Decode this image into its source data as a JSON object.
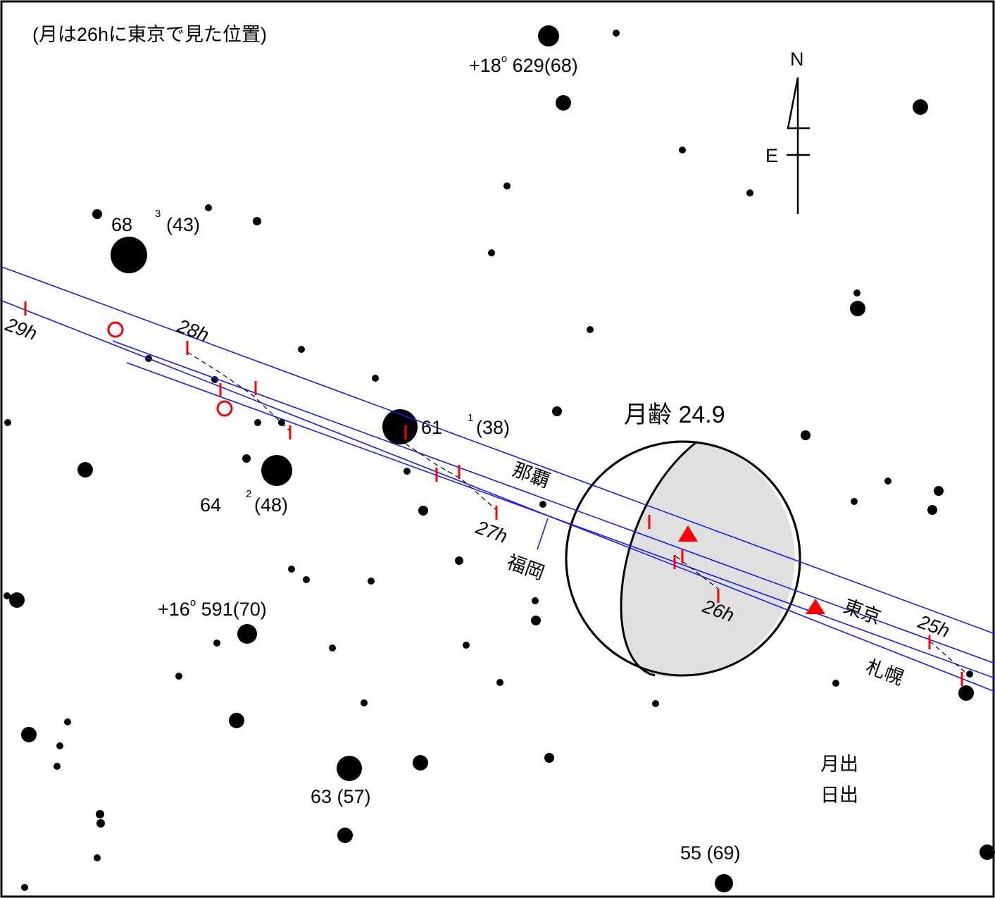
{
  "note": "(月は26hに東京で見た位置)",
  "moon_age_label": "月齢 24.9",
  "compass": {
    "north": "N",
    "east": "E"
  },
  "cities": {
    "naha": "那覇",
    "fukuoka": "福岡",
    "tokyo": "東京",
    "sapporo": "札幌"
  },
  "hours": {
    "h25": "25h",
    "h26": "26h",
    "h27": "27h",
    "h28": "28h",
    "h29": "29h"
  },
  "legend": {
    "moonrise": "月出",
    "sunrise": "日出"
  },
  "stars": {
    "s68": {
      "name": "68",
      "sup": "3",
      "mag": "(43)"
    },
    "s61": {
      "name": "61",
      "sup": "1",
      "mag": "(38)"
    },
    "s64": {
      "name": "64",
      "sup": "2",
      "mag": "(48)"
    },
    "s63": {
      "label": "63 (57)"
    },
    "s55": {
      "label": "55 (69)"
    },
    "bd18": {
      "prefix": "+18",
      "sup": "o",
      "rest": " 629(68)"
    },
    "bd16": {
      "prefix": "+16",
      "sup": "o",
      "rest": " 591(70)"
    }
  },
  "colors": {
    "track": "#1a1aff",
    "tick": "#ff0000",
    "moon_shade": "#e0e0e0",
    "star": "#000000"
  },
  "icons": {
    "moonrise": "red-triangle-icon",
    "sunrise": "red-circle-icon"
  }
}
